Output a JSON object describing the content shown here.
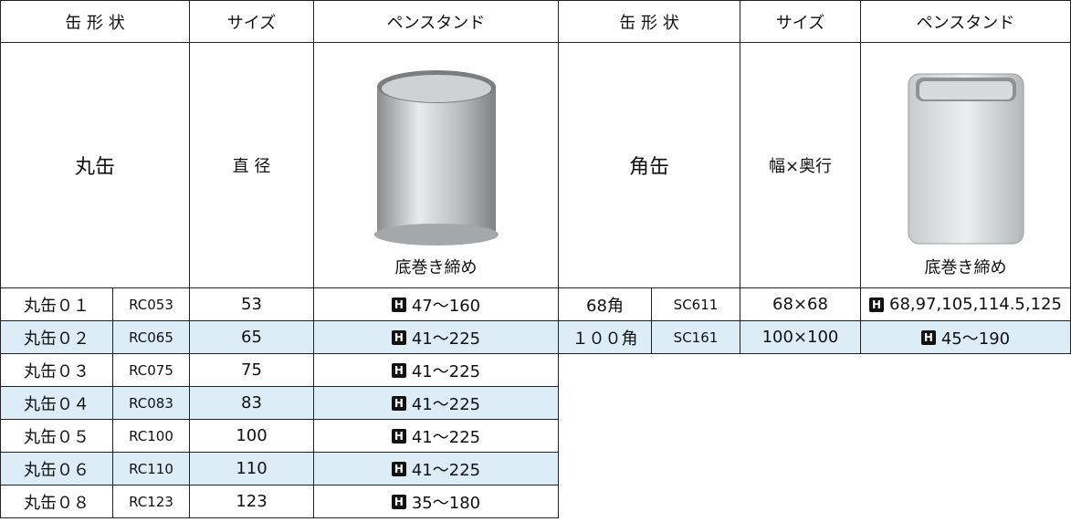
{
  "header": [
    "缶 形 状",
    "サイズ",
    "ペンスタンド",
    "缶 形 状",
    "サイズ",
    "ペンスタンド"
  ],
  "round": {
    "shape": "丸缶",
    "size": "直 径",
    "caption": "底巻き締め",
    "rows": [
      [
        "丸缶０１",
        "RC053",
        "53",
        "47〜160"
      ],
      [
        "丸缶０２",
        "RC065",
        "65",
        "41〜225"
      ],
      [
        "丸缶０３",
        "RC075",
        "75",
        "41〜225"
      ],
      [
        "丸缶０４",
        "RC083",
        "83",
        "41〜225"
      ],
      [
        "丸缶０５",
        "RC100",
        "100",
        "41〜225"
      ],
      [
        "丸缶０６",
        "RC110",
        "110",
        "41〜225"
      ],
      [
        "丸缶０８",
        "RC123",
        "123",
        "35〜180"
      ]
    ]
  },
  "square": {
    "shape": "角缶",
    "size": "幅×奥行",
    "caption": "底巻き締め",
    "rows": [
      [
        "68角",
        "SC611",
        "68×68",
        "68,97,105,114.5,125"
      ],
      [
        "１００角",
        "SC161",
        "100×100",
        "45〜190"
      ]
    ]
  }
}
